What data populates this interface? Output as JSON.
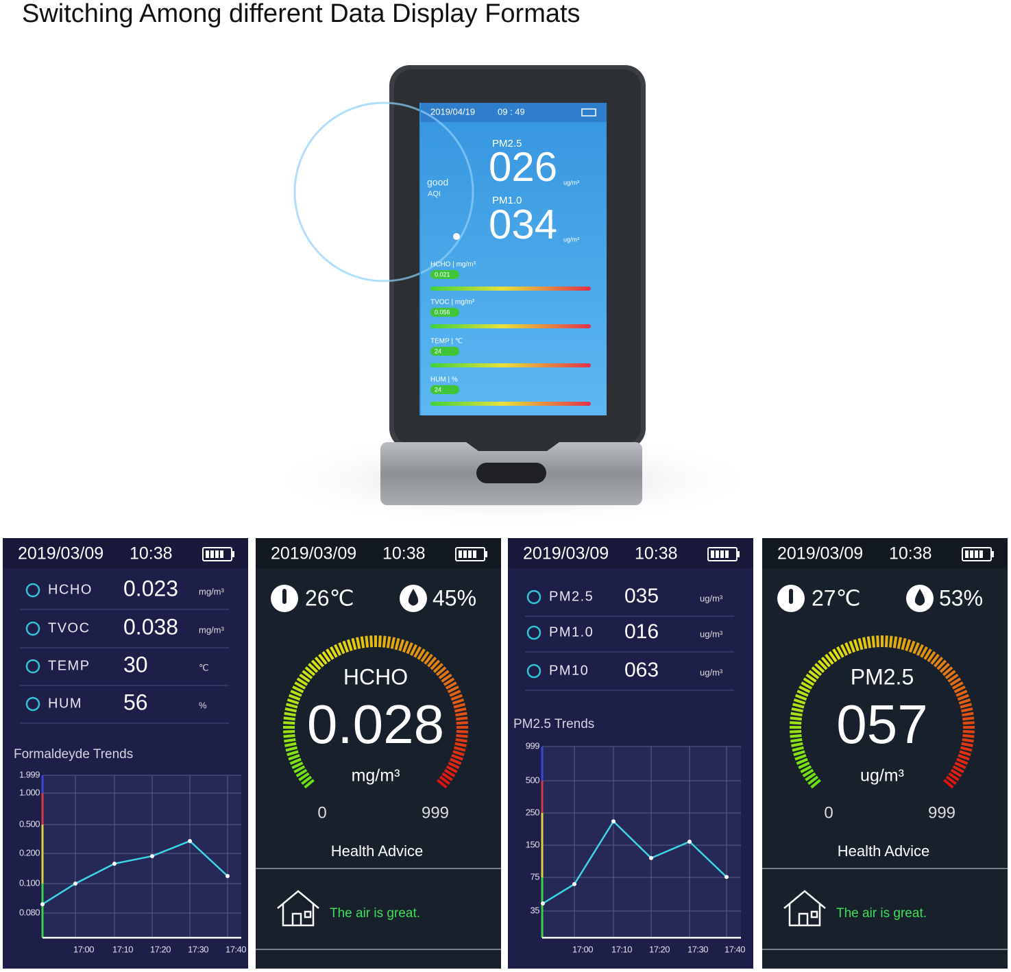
{
  "title": "Switching Among different Data Display Formats",
  "device": {
    "date": "2019/04/19",
    "time": "09 : 49",
    "aqi_status": "good",
    "aqi_label": "AQI",
    "primary": [
      {
        "name": "PM2.5",
        "value": "026",
        "unit": "ug/m³"
      },
      {
        "name": "PM1.0",
        "value": "034",
        "unit": "ug/m³"
      }
    ],
    "readings": [
      {
        "label": "HCHO | mg/m³",
        "value": "0.021"
      },
      {
        "label": "TVOC | mg/m³",
        "value": "0.056"
      },
      {
        "label": "TEMP | ℃",
        "value": "24"
      },
      {
        "label": "HUM | %",
        "value": "24"
      }
    ]
  },
  "panels": [
    {
      "date": "2019/03/09",
      "time": "10:38",
      "rows": [
        {
          "name": "HCHO",
          "value": "0.023",
          "unit": "mg/m³"
        },
        {
          "name": "TVOC",
          "value": "0.038",
          "unit": "mg/m³"
        },
        {
          "name": "TEMP",
          "value": "30",
          "unit": "℃"
        },
        {
          "name": "HUM",
          "value": "56",
          "unit": "%"
        }
      ],
      "chart": {
        "type": "line",
        "title": "Formaldeyde Trends",
        "yticks": [
          1.999,
          {
            "value": 1,
            "label": "1.000"
          },
          {
            "value": 0.5,
            "label": "0.500"
          },
          {
            "value": 0.2,
            "label": "0.200"
          },
          {
            "value": 0.1,
            "label": "0.100"
          },
          {
            "value": 0.08,
            "label": "0.080"
          }
        ],
        "categories": [
          null,
          "17:00",
          "17:10",
          "17:20",
          "17:30",
          "17:40"
        ],
        "values": [
          0.086,
          0.1,
          0.166,
          0.191,
          0.329,
          0.125
        ],
        "color": "#3ed6e6"
      }
    },
    {
      "date": "2019/03/09",
      "time": "10:38",
      "temperature": "26℃",
      "humidity": "45%",
      "gauge": {
        "name": "HCHO",
        "value": "0.028",
        "unit": "mg/m³",
        "min": "0",
        "max": "999"
      },
      "advice_title": "Health Advice",
      "advice": "The air is  great."
    },
    {
      "date": "2019/03/09",
      "time": "10:38",
      "rows": [
        {
          "name": "PM2.5",
          "value": "035",
          "unit": "ug/m³"
        },
        {
          "name": "PM1.0",
          "value": "016",
          "unit": "ug/m³"
        },
        {
          "name": "PM10",
          "value": "063",
          "unit": "ug/m³"
        }
      ],
      "chart": {
        "type": "line",
        "title": "PM2.5 Trends",
        "yticks": [
          999,
          500,
          250,
          150,
          75,
          35
        ],
        "categories": [
          null,
          "17:00",
          "17:10",
          "17:20",
          "17:30",
          "17:40"
        ],
        "values": [
          44,
          67,
          224,
          120,
          161,
          76
        ],
        "color": "#3ed6e6"
      }
    },
    {
      "date": "2019/03/09",
      "time": "10:38",
      "temperature": "27℃",
      "humidity": "53%",
      "gauge": {
        "name": "PM2.5",
        "value": "057",
        "unit": "ug/m³",
        "min": "0",
        "max": "999"
      },
      "advice_title": "Health Advice",
      "advice": "The air is  great."
    }
  ]
}
